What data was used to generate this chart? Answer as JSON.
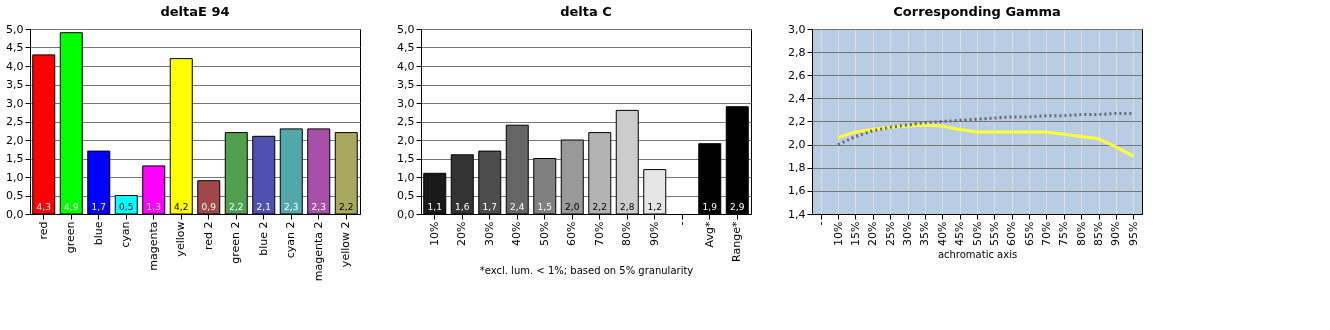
{
  "chart_data": [
    {
      "type": "bar",
      "title": "deltaE 94",
      "categories": [
        "red",
        "green",
        "blue",
        "cyan",
        "magenta",
        "yellow",
        "red 2",
        "green 2",
        "blue 2",
        "cyan 2",
        "magenta 2",
        "yellow 2"
      ],
      "values": [
        4.3,
        4.9,
        1.7,
        0.5,
        1.3,
        4.2,
        0.9,
        2.2,
        2.1,
        2.3,
        2.3,
        2.2
      ],
      "value_labels": [
        "4,3",
        "4,9",
        "1,7",
        "0,5",
        "1,3",
        "4,2",
        "0,9",
        "2,2",
        "2,1",
        "2,3",
        "2,3",
        "2,2"
      ],
      "colors": [
        "#ff0000",
        "#00ff00",
        "#0000ff",
        "#00ffff",
        "#ff00ff",
        "#ffff00",
        "#a04848",
        "#50a050",
        "#5050b0",
        "#50a8a8",
        "#a850a8",
        "#a8a860"
      ],
      "ylim": [
        0,
        5
      ],
      "yticks": [
        {
          "value": 0,
          "label": "0,0"
        },
        {
          "value": 0.5,
          "label": "0,5"
        },
        {
          "value": 1,
          "label": "1,0"
        },
        {
          "value": 1.5,
          "label": "1,5"
        },
        {
          "value": 2,
          "label": "2,0"
        },
        {
          "value": 2.5,
          "label": "2,5"
        },
        {
          "value": 3,
          "label": "3,0"
        },
        {
          "value": 3.5,
          "label": "3,5"
        },
        {
          "value": 4,
          "label": "4,0"
        },
        {
          "value": 4.5,
          "label": "4,5"
        },
        {
          "value": 5,
          "label": "5,0"
        }
      ],
      "grid": "y"
    },
    {
      "type": "bar",
      "title": "delta C",
      "xlabel": "*excl. lum. < 1%; based on 5% granularity",
      "categories": [
        "10%",
        "20%",
        "30%",
        "40%",
        "50%",
        "60%",
        "70%",
        "80%",
        "90%",
        "-",
        "Avg*",
        "Range*"
      ],
      "values": [
        1.1,
        1.6,
        1.7,
        2.4,
        1.5,
        2.0,
        2.2,
        2.8,
        1.2,
        null,
        1.9,
        2.9
      ],
      "value_labels": [
        "1,1",
        "1,6",
        "1,7",
        "2,4",
        "1,5",
        "2,0",
        "2,2",
        "2,8",
        "1,2",
        null,
        "1,9",
        "2,9"
      ],
      "colors": [
        "#1a1a1a",
        "#333333",
        "#4d4d4d",
        "#666666",
        "#808080",
        "#999999",
        "#b3b3b3",
        "#cccccc",
        "#e6e6e6",
        "#ffffff",
        "#000000",
        "#000000"
      ],
      "ylim": [
        0,
        5
      ],
      "yticks": [
        {
          "value": 0,
          "label": "0,0"
        },
        {
          "value": 0.5,
          "label": "0,5"
        },
        {
          "value": 1,
          "label": "1,0"
        },
        {
          "value": 1.5,
          "label": "1,5"
        },
        {
          "value": 2,
          "label": "2,0"
        },
        {
          "value": 2.5,
          "label": "2,5"
        },
        {
          "value": 3,
          "label": "3,0"
        },
        {
          "value": 3.5,
          "label": "3,5"
        },
        {
          "value": 4,
          "label": "4,0"
        },
        {
          "value": 4.5,
          "label": "4,5"
        },
        {
          "value": 5,
          "label": "5,0"
        }
      ],
      "grid": "y"
    },
    {
      "type": "line",
      "title": "Corresponding Gamma",
      "xlabel": "achromatic axis",
      "categories": [
        "-",
        "10%",
        "15%",
        "20%",
        "25%",
        "30%",
        "35%",
        "40%",
        "45%",
        "50%",
        "55%",
        "60%",
        "65%",
        "70%",
        "75%",
        "80%",
        "85%",
        "90%",
        "95%"
      ],
      "series": [
        {
          "color": "#ffff33",
          "line_style": "solid",
          "values": [
            null,
            2.06,
            2.11,
            2.13,
            2.15,
            2.16,
            2.17,
            2.16,
            2.13,
            2.11,
            2.11,
            2.11,
            2.11,
            2.11,
            2.09,
            2.07,
            2.05,
            1.98,
            1.9
          ]
        },
        {
          "color": "#666677",
          "line_style": "dotted",
          "values": [
            null,
            2.0,
            2.07,
            2.12,
            2.15,
            2.17,
            2.19,
            2.2,
            2.21,
            2.22,
            2.23,
            2.24,
            2.24,
            2.25,
            2.25,
            2.26,
            2.26,
            2.27,
            2.27
          ]
        }
      ],
      "ylim": [
        1.4,
        3.0
      ],
      "yticks": [
        {
          "value": 1.4,
          "label": "1,4"
        },
        {
          "value": 1.6,
          "label": "1,6"
        },
        {
          "value": 1.8,
          "label": "1,8"
        },
        {
          "value": 2,
          "label": "2,0"
        },
        {
          "value": 2.2,
          "label": "2,2"
        },
        {
          "value": 2.4,
          "label": "2,4"
        },
        {
          "value": 2.6,
          "label": "2,6"
        },
        {
          "value": 2.8,
          "label": "2,8"
        },
        {
          "value": 3,
          "label": "3,0"
        }
      ],
      "grid": true
    }
  ]
}
